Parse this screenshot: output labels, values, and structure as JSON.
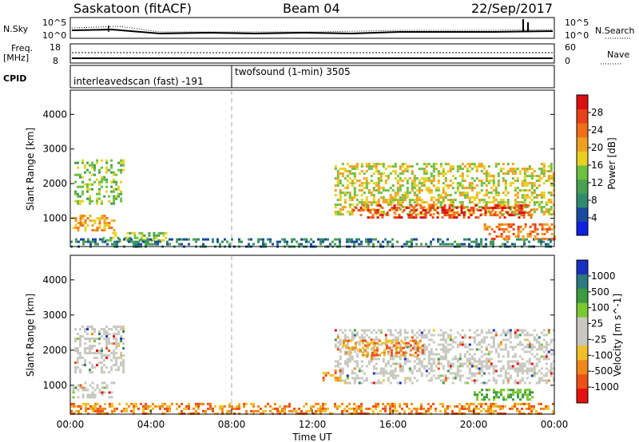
{
  "header": {
    "station": "Saskatoon (fitACF)",
    "beam": "Beam 04",
    "date": "22/Sep/2017"
  },
  "noise_panel": {
    "left_label": "N.Sky",
    "right_label": "N.Search",
    "left_ticks": [
      "10^5",
      "10^0"
    ],
    "right_ticks": [
      "10^5",
      "10^0"
    ]
  },
  "freq_panel": {
    "left_label": "Freq.",
    "left_unit": "[MHz]",
    "right_label": "Nave",
    "left_ticks": [
      "18",
      "8"
    ],
    "right_ticks": [
      "60",
      "0"
    ]
  },
  "cpid_panel": {
    "label": "CPID",
    "segments": [
      {
        "start_hour": 0,
        "text": "interleavedscan (fast) -191"
      },
      {
        "start_hour": 8,
        "text": "twofsound (1-min) 3505"
      }
    ]
  },
  "chart_data": [
    {
      "type": "heatmap",
      "title": "Power",
      "xlabel": "",
      "ylabel": "Slant Range [km]",
      "xlim": [
        0,
        24
      ],
      "ylim": [
        180,
        4700
      ],
      "y_ticks": [
        1000,
        2000,
        3000,
        4000
      ],
      "colorbar": {
        "label": "Power [dB]",
        "ticks": [
          "4",
          "8",
          "12",
          "16",
          "20",
          "24",
          "28"
        ],
        "colors": [
          "#1020e0",
          "#1a4aa0",
          "#2f8a70",
          "#4aa050",
          "#6dc040",
          "#e8d020",
          "#f0a020",
          "#ef7018",
          "#e84018",
          "#d81010"
        ]
      },
      "regions": [
        {
          "x": [
            0.2,
            2.6
          ],
          "y": [
            1400,
            2700
          ],
          "value": 16
        },
        {
          "x": [
            0.1,
            2.2
          ],
          "y": [
            650,
            1100
          ],
          "value": 22
        },
        {
          "x": [
            1.6,
            4.8
          ],
          "y": [
            380,
            600
          ],
          "value": 14
        },
        {
          "x": [
            0,
            24
          ],
          "y": [
            180,
            420
          ],
          "value": 10
        },
        {
          "x": [
            13.1,
            24
          ],
          "y": [
            1100,
            2600
          ],
          "value": 18
        },
        {
          "x": [
            14,
            23
          ],
          "y": [
            1050,
            1400
          ],
          "value": 26
        },
        {
          "x": [
            20.5,
            24
          ],
          "y": [
            400,
            850
          ],
          "value": 24
        }
      ]
    },
    {
      "type": "heatmap",
      "title": "Velocity",
      "xlabel": "Time UT",
      "ylabel": "Slant Range [km]",
      "xlim": [
        0,
        24
      ],
      "ylim": [
        180,
        4700
      ],
      "x_ticks": [
        "00:00",
        "04:00",
        "08:00",
        "12:00",
        "16:00",
        "20:00",
        "00:00"
      ],
      "y_ticks": [
        1000,
        2000,
        3000,
        4000
      ],
      "colorbar": {
        "label": "Velocity [m s^-1]",
        "ticks": [
          "1000",
          "500",
          "100",
          "25",
          "-25",
          "-100",
          "-500",
          "-1000"
        ],
        "colors": [
          "#1830c0",
          "#2a7a80",
          "#3c9a40",
          "#7cc830",
          "#c8c8c0",
          "#c8c8c0",
          "#f0c028",
          "#ef8818",
          "#ef5018",
          "#e81010"
        ]
      },
      "regions": [
        {
          "x": [
            0.2,
            2.6
          ],
          "y": [
            1400,
            2700
          ],
          "value": 0
        },
        {
          "x": [
            0.1,
            2.2
          ],
          "y": [
            650,
            1100
          ],
          "value": 0
        },
        {
          "x": [
            0,
            24
          ],
          "y": [
            180,
            500
          ],
          "value": -50
        },
        {
          "x": [
            13.1,
            24
          ],
          "y": [
            1100,
            2600
          ],
          "value": 0
        },
        {
          "x": [
            13.5,
            17.5
          ],
          "y": [
            1850,
            2300
          ],
          "value": -300
        },
        {
          "x": [
            12.5,
            13.4
          ],
          "y": [
            1150,
            1450
          ],
          "value": -200
        },
        {
          "x": [
            20,
            23
          ],
          "y": [
            600,
            900
          ],
          "value": 50
        }
      ]
    }
  ]
}
